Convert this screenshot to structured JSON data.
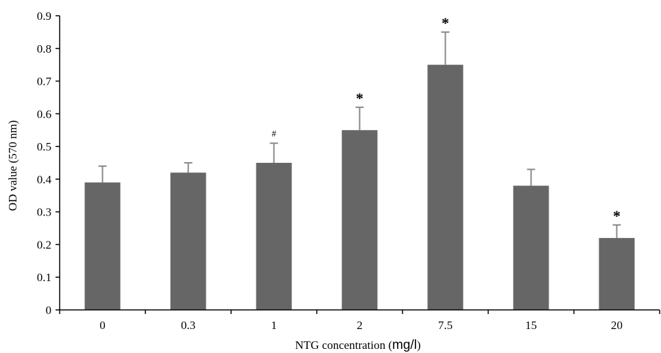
{
  "chart_data": {
    "type": "bar",
    "title": "",
    "xlabel": "NTG concentration (",
    "xlabel_unit": "mg/l",
    "xlabel_close": ")",
    "ylabel": "OD value (570 nm)",
    "ylim": [
      0,
      0.9
    ],
    "yticks": [
      "0",
      "0.1",
      "0.2",
      "0.3",
      "0.4",
      "0.5",
      "0.6",
      "0.7",
      "0.8",
      "0.9"
    ],
    "categories": [
      "0",
      "0.3",
      "1",
      "2",
      "7.5",
      "15",
      "20"
    ],
    "values": [
      0.39,
      0.42,
      0.45,
      0.55,
      0.75,
      0.38,
      0.22
    ],
    "errors": [
      0.05,
      0.03,
      0.06,
      0.07,
      0.1,
      0.05,
      0.04
    ],
    "annotations": [
      "",
      "",
      "#",
      "*",
      "*",
      "",
      "*"
    ],
    "grid": false,
    "legend": "none",
    "bar_color": "#666666",
    "axis_color": "#000000"
  }
}
